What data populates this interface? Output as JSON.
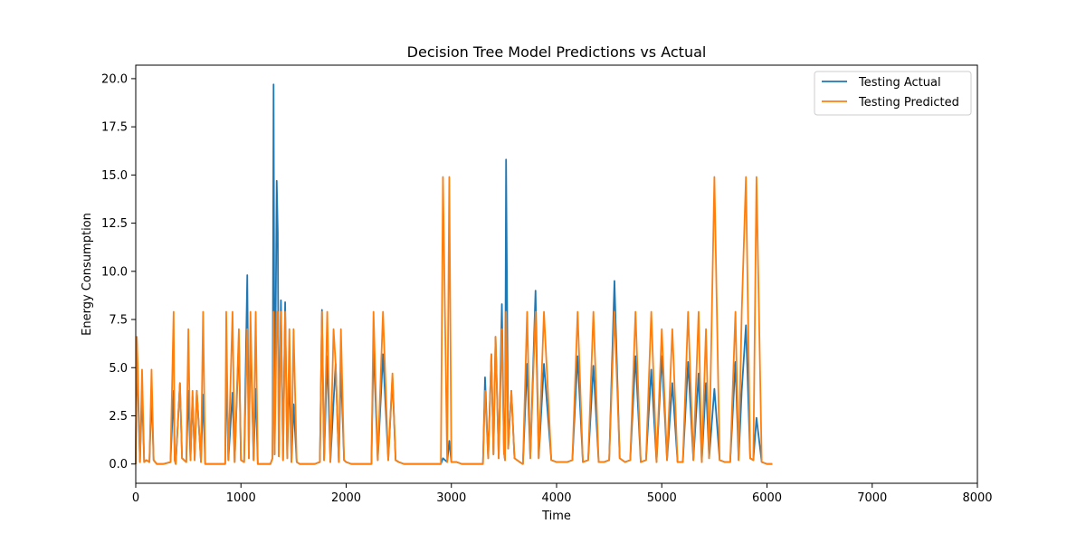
{
  "chart_data": {
    "type": "line",
    "title": "Decision Tree Model Predictions vs Actual",
    "xlabel": "Time",
    "ylabel": "Energy Consumption",
    "xlim": [
      0,
      8000
    ],
    "ylim": [
      -1.0,
      20.7
    ],
    "x_ticks": [
      0,
      1000,
      2000,
      3000,
      4000,
      5000,
      6000,
      7000,
      8000
    ],
    "y_ticks": [
      0.0,
      2.5,
      5.0,
      7.5,
      10.0,
      12.5,
      15.0,
      17.5,
      20.0
    ],
    "x_tick_labels": [
      "0",
      "1000",
      "2000",
      "3000",
      "4000",
      "5000",
      "6000",
      "7000",
      "8000"
    ],
    "y_tick_labels": [
      "0.0",
      "2.5",
      "5.0",
      "7.5",
      "10.0",
      "12.5",
      "15.0",
      "17.5",
      "20.0"
    ],
    "grid": false,
    "legend_position": "top-right",
    "series": [
      {
        "name": "Testing Actual",
        "color": "#1f77b4",
        "x": [
          0,
          10,
          20,
          40,
          60,
          80,
          100,
          130,
          150,
          170,
          200,
          260,
          330,
          360,
          370,
          380,
          420,
          440,
          480,
          500,
          520,
          540,
          560,
          580,
          620,
          640,
          660,
          760,
          850,
          860,
          880,
          920,
          940,
          980,
          1000,
          1030,
          1060,
          1075,
          1090,
          1120,
          1140,
          1160,
          1240,
          1280,
          1300,
          1310,
          1320,
          1340,
          1350,
          1360,
          1380,
          1400,
          1420,
          1440,
          1460,
          1480,
          1500,
          1530,
          1560,
          1620,
          1700,
          1750,
          1770,
          1790,
          1820,
          1850,
          1880,
          1900,
          1930,
          1950,
          1980,
          2000,
          2050,
          2100,
          2180,
          2240,
          2260,
          2300,
          2350,
          2400,
          2440,
          2470,
          2500,
          2550,
          2600,
          2700,
          2780,
          2850,
          2900,
          2920,
          2960,
          2980,
          3000,
          3050,
          3100,
          3200,
          3300,
          3320,
          3350,
          3380,
          3400,
          3420,
          3450,
          3480,
          3500,
          3510,
          3520,
          3540,
          3570,
          3600,
          3650,
          3680,
          3720,
          3750,
          3800,
          3830,
          3880,
          3950,
          4000,
          4050,
          4100,
          4150,
          4200,
          4250,
          4300,
          4350,
          4400,
          4450,
          4500,
          4550,
          4600,
          4650,
          4700,
          4750,
          4800,
          4850,
          4900,
          4950,
          5000,
          5050,
          5100,
          5150,
          5200,
          5250,
          5300,
          5350,
          5380,
          5420,
          5450,
          5500,
          5550,
          5600,
          5650,
          5700,
          5730,
          5760,
          5800,
          5840,
          5870,
          5900,
          5950,
          6000,
          6050
        ],
        "y": [
          0.0,
          6.5,
          3.8,
          0.1,
          3.7,
          0.1,
          0.2,
          0.1,
          3.7,
          0.2,
          0.0,
          0.0,
          0.1,
          3.8,
          0.2,
          0.0,
          4.2,
          0.3,
          0.1,
          3.8,
          0.2,
          3.5,
          0.2,
          3.8,
          0.1,
          3.6,
          0.0,
          0.0,
          0.0,
          5.1,
          0.2,
          3.7,
          0.1,
          6.5,
          0.2,
          0.1,
          9.8,
          0.3,
          6.9,
          0.2,
          3.9,
          0.0,
          0.0,
          0.0,
          0.3,
          19.7,
          0.5,
          14.7,
          12.0,
          0.4,
          8.5,
          0.2,
          8.4,
          0.3,
          5.0,
          0.1,
          3.1,
          0.1,
          0.0,
          0.0,
          0.0,
          0.1,
          8.0,
          0.2,
          5.6,
          0.1,
          3.2,
          5.2,
          0.1,
          5.0,
          0.2,
          0.1,
          0.0,
          0.0,
          0.0,
          0.0,
          6.2,
          0.2,
          5.7,
          0.2,
          4.5,
          0.2,
          0.1,
          0.0,
          0.0,
          0.0,
          0.0,
          0.0,
          0.0,
          0.3,
          0.1,
          1.2,
          0.1,
          0.1,
          0.0,
          0.0,
          0.0,
          4.5,
          0.3,
          5.7,
          0.5,
          6.6,
          0.3,
          8.3,
          0.6,
          0.2,
          15.8,
          0.8,
          3.8,
          0.3,
          0.1,
          0.0,
          5.2,
          0.3,
          9.0,
          0.3,
          5.2,
          0.2,
          0.1,
          0.1,
          0.1,
          0.2,
          5.6,
          0.1,
          0.2,
          5.1,
          0.1,
          0.1,
          0.2,
          9.5,
          0.3,
          0.1,
          0.2,
          5.6,
          0.1,
          0.2,
          4.9,
          0.1,
          5.6,
          0.2,
          4.2,
          0.1,
          0.1,
          5.3,
          0.2,
          4.7,
          0.1,
          4.2,
          0.3,
          3.9,
          0.2,
          0.1,
          0.1,
          5.3,
          0.2,
          3.8,
          7.2,
          0.3,
          0.2,
          2.4,
          0.1,
          0.0,
          0.0
        ]
      },
      {
        "name": "Testing Predicted",
        "color": "#ff7f0e",
        "x": [
          0,
          10,
          20,
          40,
          60,
          80,
          100,
          130,
          150,
          170,
          200,
          260,
          330,
          360,
          370,
          380,
          420,
          440,
          480,
          500,
          520,
          540,
          560,
          580,
          620,
          640,
          660,
          760,
          850,
          860,
          880,
          920,
          940,
          980,
          1000,
          1030,
          1060,
          1075,
          1090,
          1120,
          1140,
          1160,
          1240,
          1280,
          1300,
          1310,
          1320,
          1340,
          1350,
          1360,
          1380,
          1400,
          1420,
          1440,
          1460,
          1480,
          1500,
          1530,
          1560,
          1620,
          1700,
          1750,
          1770,
          1790,
          1820,
          1850,
          1880,
          1900,
          1930,
          1950,
          1980,
          2000,
          2050,
          2100,
          2180,
          2240,
          2260,
          2300,
          2350,
          2400,
          2440,
          2470,
          2500,
          2550,
          2600,
          2700,
          2780,
          2850,
          2900,
          2920,
          2960,
          2980,
          3000,
          3050,
          3100,
          3200,
          3300,
          3320,
          3350,
          3380,
          3400,
          3420,
          3450,
          3480,
          3500,
          3510,
          3520,
          3540,
          3570,
          3600,
          3650,
          3680,
          3720,
          3750,
          3800,
          3830,
          3880,
          3950,
          4000,
          4050,
          4100,
          4150,
          4200,
          4250,
          4300,
          4350,
          4400,
          4450,
          4500,
          4550,
          4600,
          4650,
          4700,
          4750,
          4800,
          4850,
          4900,
          4950,
          5000,
          5050,
          5100,
          5150,
          5200,
          5250,
          5300,
          5350,
          5380,
          5420,
          5450,
          5500,
          5550,
          5600,
          5650,
          5700,
          5730,
          5760,
          5800,
          5840,
          5870,
          5900,
          5950,
          6000,
          6050
        ],
        "y": [
          0.0,
          6.6,
          4.9,
          0.1,
          4.9,
          0.1,
          0.2,
          0.1,
          4.9,
          0.2,
          0.0,
          0.0,
          0.1,
          7.9,
          0.2,
          0.0,
          4.2,
          0.3,
          0.1,
          7.0,
          0.2,
          3.8,
          0.2,
          3.8,
          0.1,
          7.9,
          0.0,
          0.0,
          0.0,
          7.9,
          0.2,
          7.9,
          0.1,
          7.0,
          0.2,
          0.1,
          7.0,
          0.3,
          7.9,
          0.2,
          7.9,
          0.0,
          0.0,
          0.0,
          0.3,
          7.9,
          0.5,
          7.9,
          7.9,
          0.4,
          7.9,
          0.2,
          7.9,
          0.3,
          7.0,
          0.1,
          7.0,
          0.1,
          0.0,
          0.0,
          0.0,
          0.1,
          7.9,
          0.2,
          7.9,
          0.1,
          7.0,
          5.2,
          0.1,
          7.0,
          0.2,
          0.1,
          0.0,
          0.0,
          0.0,
          0.0,
          7.9,
          0.2,
          7.9,
          0.2,
          4.7,
          0.2,
          0.1,
          0.0,
          0.0,
          0.0,
          0.0,
          0.0,
          0.0,
          14.9,
          0.1,
          14.9,
          0.1,
          0.1,
          0.0,
          0.0,
          0.0,
          3.8,
          0.3,
          5.7,
          0.5,
          6.6,
          0.3,
          7.0,
          0.6,
          0.2,
          7.9,
          0.8,
          3.8,
          0.3,
          0.1,
          0.0,
          7.9,
          0.3,
          7.9,
          0.3,
          7.9,
          0.2,
          0.1,
          0.1,
          0.1,
          0.2,
          7.9,
          0.1,
          0.2,
          7.9,
          0.1,
          0.1,
          0.2,
          7.9,
          0.3,
          0.1,
          0.2,
          7.9,
          0.1,
          0.2,
          7.9,
          0.1,
          7.0,
          0.2,
          7.0,
          0.1,
          0.1,
          7.9,
          0.2,
          7.9,
          0.1,
          7.0,
          0.3,
          14.9,
          0.2,
          0.1,
          0.1,
          7.9,
          0.2,
          7.9,
          14.9,
          0.3,
          0.2,
          14.9,
          0.1,
          0.0,
          0.0
        ]
      }
    ]
  }
}
